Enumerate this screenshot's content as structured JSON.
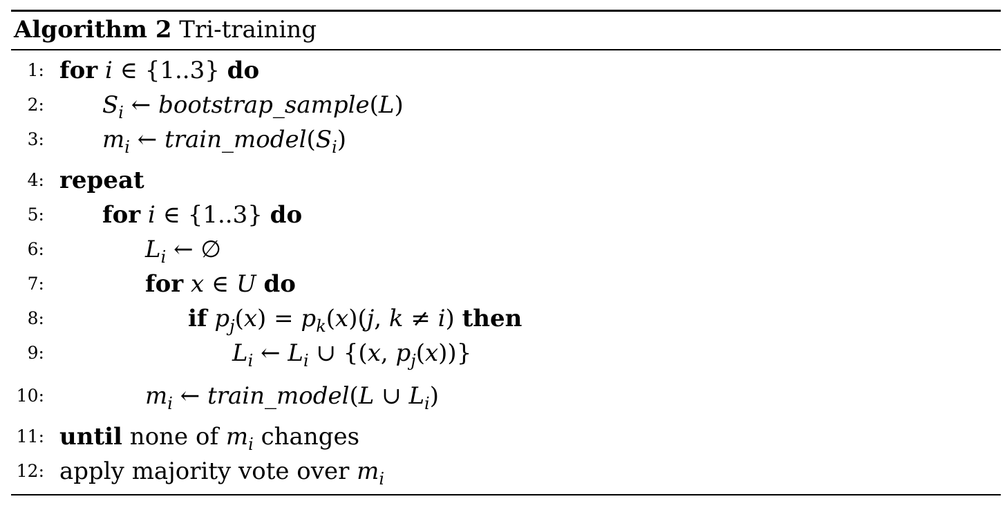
{
  "caption": {
    "label": "Algorithm 2",
    "title": "Tri-training"
  },
  "lines": [
    {
      "num": "1:"
    },
    {
      "num": "2:"
    },
    {
      "num": "3:"
    },
    {
      "num": "4:"
    },
    {
      "num": "5:"
    },
    {
      "num": "6:"
    },
    {
      "num": "7:"
    },
    {
      "num": "8:"
    },
    {
      "num": "9:"
    },
    {
      "num": "10:"
    },
    {
      "num": "11:"
    },
    {
      "num": "12:"
    }
  ],
  "keywords": {
    "for": "for",
    "do": "do",
    "repeat": "repeat",
    "if": "if",
    "then": "then",
    "until": "until"
  },
  "text": {
    "none_of": "none of",
    "changes": "changes",
    "apply": "apply majority vote over"
  },
  "vars": {
    "i": "i",
    "j": "j",
    "k": "k",
    "x": "x",
    "L": "L",
    "U": "U",
    "S": "S",
    "m": "m",
    "p": "p"
  },
  "functions": {
    "bootstrap": "bootstrap_sample",
    "train": "train_model"
  },
  "symbols": {
    "range": "{1..3}",
    "elem": "∈",
    "arrow": "←",
    "empty": "∅",
    "union": "∪",
    "eq": "=",
    "neq": "≠"
  }
}
